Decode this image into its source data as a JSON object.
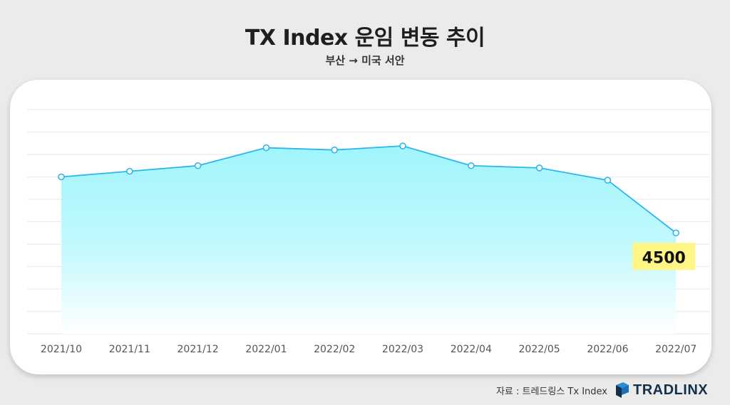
{
  "header": {
    "title": "TX Index 운임 변동 추이",
    "subtitle": "부산 → 미국 서안"
  },
  "footer": {
    "source": "자료 : 트레드링스 Tx Index",
    "logo_text": "TRADLINX"
  },
  "colors": {
    "line": "#2bb6ee",
    "area_top": "#9ff5fc",
    "callout_bg": "#fff685"
  },
  "chart_data": {
    "type": "area",
    "categories": [
      "2021/10",
      "2021/11",
      "2021/12",
      "2022/01",
      "2022/02",
      "2022/03",
      "2022/04",
      "2022/05",
      "2022/06",
      "2022/07"
    ],
    "series": [
      {
        "values": [
          7000,
          7250,
          7500,
          8300,
          8200,
          8380,
          7500,
          7400,
          6850,
          4500
        ]
      }
    ],
    "ylim": [
      0,
      10000
    ],
    "grid": true,
    "annotation": {
      "index": 9,
      "text": "4500"
    }
  }
}
